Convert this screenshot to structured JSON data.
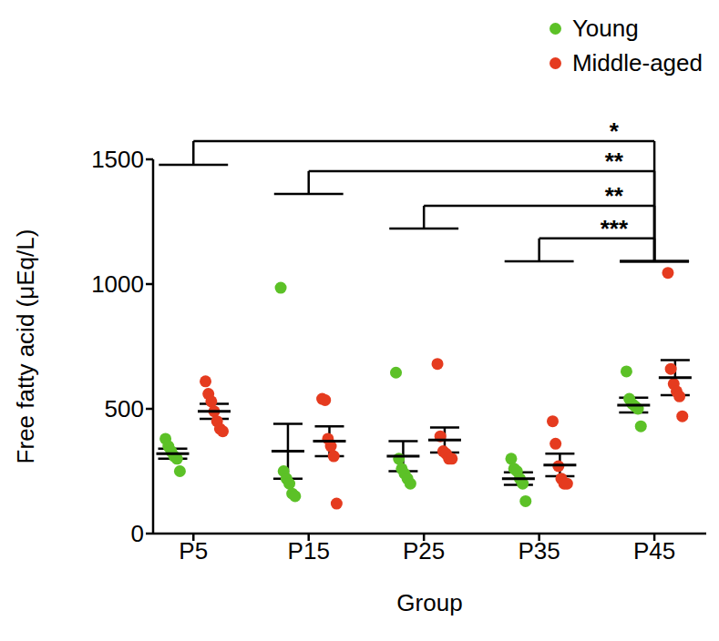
{
  "chart_data": {
    "type": "scatter",
    "x_label": "Group",
    "y_label": "Free fatty acid (μEq/L)",
    "categories": [
      "P5",
      "P15",
      "P25",
      "P35",
      "P45"
    ],
    "ylim": [
      0,
      1500
    ],
    "yticks": [
      0,
      500,
      1000,
      1500
    ],
    "grid": false,
    "legend": "upper right",
    "series": [
      {
        "name": "Young",
        "color": "#5cc127",
        "marker": "circle",
        "values": [
          [
            380,
            350,
            330,
            310,
            300,
            250
          ],
          [
            985,
            250,
            220,
            200,
            160,
            150
          ],
          [
            645,
            300,
            260,
            240,
            220,
            200
          ],
          [
            300,
            260,
            250,
            220,
            200,
            130
          ],
          [
            650,
            540,
            520,
            510,
            500,
            430
          ]
        ],
        "mean": [
          320,
          330,
          310,
          220,
          515
        ],
        "sem": [
          20,
          110,
          60,
          25,
          30
        ]
      },
      {
        "name": "Middle-aged",
        "color": "#e53b1f",
        "marker": "circle",
        "values": [
          [
            610,
            560,
            530,
            490,
            450,
            420,
            410
          ],
          [
            540,
            535,
            380,
            350,
            310,
            120
          ],
          [
            680,
            390,
            330,
            320,
            300,
            300
          ],
          [
            450,
            360,
            270,
            220,
            200,
            200
          ],
          [
            1045,
            660,
            600,
            570,
            550,
            470
          ]
        ],
        "mean": [
          490,
          370,
          375,
          275,
          625
        ],
        "sem": [
          30,
          60,
          50,
          45,
          70
        ]
      }
    ],
    "comparisons": [
      {
        "from": "P5",
        "to": "P45",
        "label": "*",
        "y": 1573,
        "from_y": 1478,
        "to_y": 1091
      },
      {
        "from": "P15",
        "to": "P45",
        "label": "**",
        "y": 1453,
        "from_y": 1361,
        "to_y": 1091
      },
      {
        "from": "P25",
        "to": "P45",
        "label": "**",
        "y": 1314,
        "from_y": 1223,
        "to_y": 1091
      },
      {
        "from": "P35",
        "to": "P45",
        "label": "***",
        "y": 1183,
        "from_y": 1091,
        "to_y": 1091
      }
    ]
  }
}
